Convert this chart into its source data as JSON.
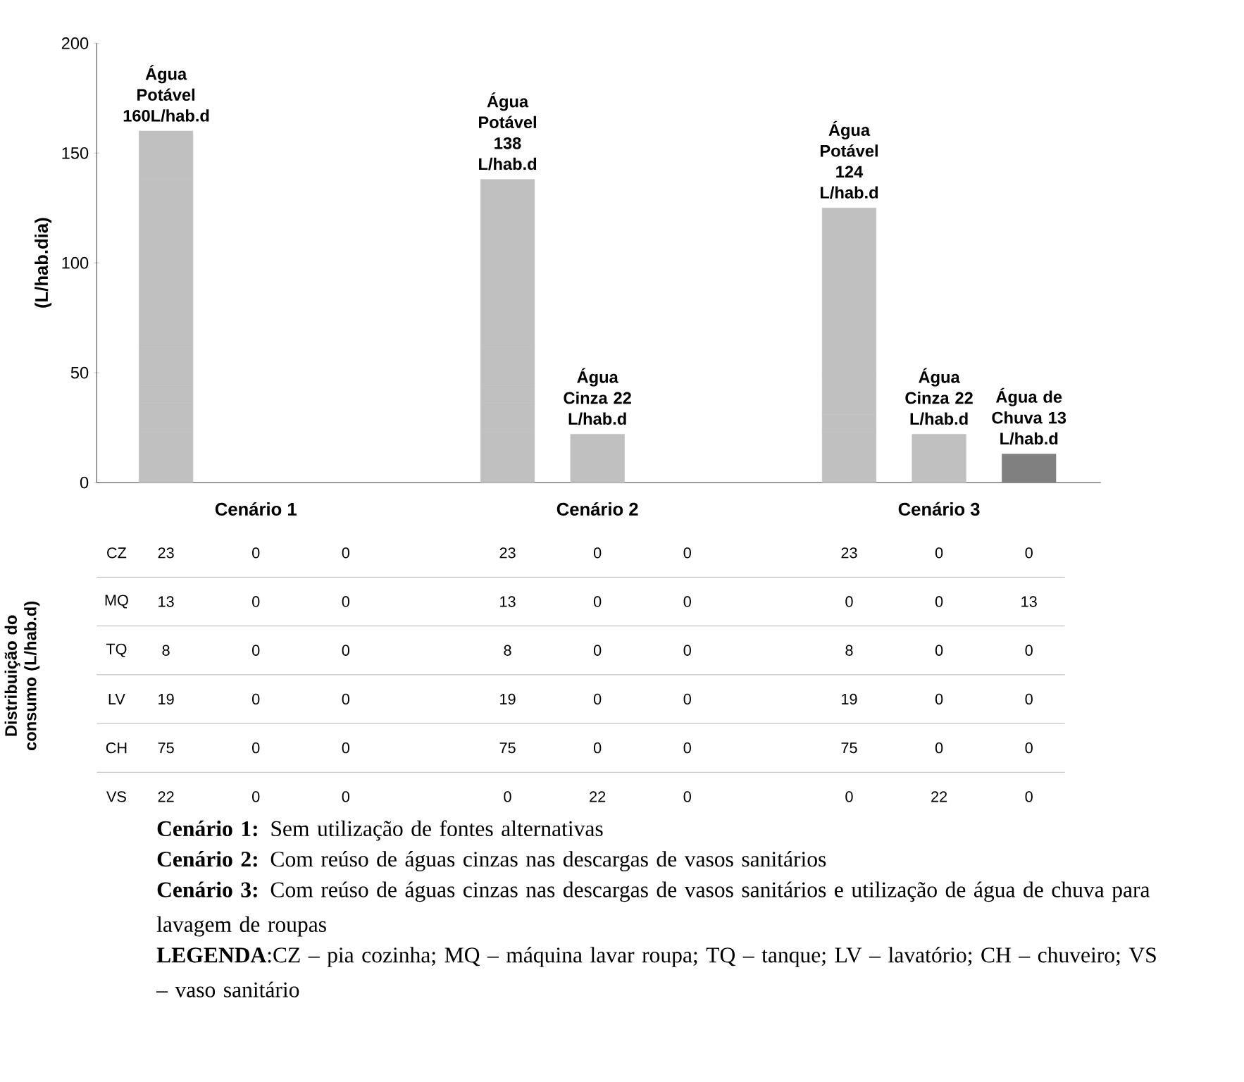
{
  "chart_data": {
    "type": "bar",
    "stacked": true,
    "ylabel": "(L/hab.dia)",
    "categories": [
      null,
      null,
      null,
      null,
      null,
      null,
      null,
      null,
      null
    ],
    "series": [
      {
        "values": [
          23,
          0,
          0,
          23,
          0,
          0,
          23,
          0,
          0
        ],
        "colors": [
          "#c0c0c0",
          "#c0c0c0",
          "#808080",
          "#c0c0c0",
          "#c0c0c0",
          "#808080",
          "#c0c0c0",
          "#c0c0c0",
          "#808080"
        ]
      },
      {
        "values": [
          13,
          0,
          0,
          13,
          0,
          0,
          0,
          0,
          13
        ],
        "colors": [
          "#c0c0c0",
          "#c0c0c0",
          "#808080",
          "#c0c0c0",
          "#c0c0c0",
          "#808080",
          "#c0c0c0",
          "#c0c0c0",
          "#808080"
        ]
      },
      {
        "values": [
          8,
          0,
          0,
          8,
          0,
          0,
          8,
          0,
          0
        ],
        "colors": [
          "#c0c0c0",
          "#c0c0c0",
          "#808080",
          "#c0c0c0",
          "#c0c0c0",
          "#808080",
          "#c0c0c0",
          "#c0c0c0",
          "#808080"
        ]
      },
      {
        "values": [
          19,
          0,
          0,
          19,
          0,
          0,
          19,
          0,
          0
        ],
        "colors": [
          "#c0c0c0",
          "#c0c0c0",
          "#808080",
          "#c0c0c0",
          "#c0c0c0",
          "#808080",
          "#c0c0c0",
          "#c0c0c0",
          "#808080"
        ]
      },
      {
        "values": [
          75,
          0,
          0,
          75,
          0,
          0,
          75,
          0,
          0
        ],
        "colors": [
          "#c0c0c0",
          "#c0c0c0",
          "#808080",
          "#c0c0c0",
          "#c0c0c0",
          "#808080",
          "#c0c0c0",
          "#c0c0c0",
          "#808080"
        ]
      },
      {
        "values": [
          22,
          0,
          0,
          0,
          22,
          0,
          0,
          22,
          0
        ],
        "colors": [
          "#c0c0c0",
          "#c0c0c0",
          "#808080",
          "#c0c0c0",
          "#c0c0c0",
          "#808080",
          "#c0c0c0",
          "#c0c0c0",
          "#808080"
        ]
      }
    ],
    "data_labels": true,
    "totals": [
      "Água Potável 160L/hab.d",
      null,
      null,
      "Água Potável 138 L/hab.d",
      "Água Cinza 22 L/hab.d",
      null,
      "Água Potável 124 L/hab.d",
      "Água Cinza 22 L/hab.d",
      "Água de Chuva 13 L/hab.d"
    ],
    "ylim": [
      0,
      200
    ],
    "yticks": [
      0,
      50,
      100,
      150,
      200
    ],
    "annotations": [
      "Cenário 1",
      "Cenário 2",
      "Cenário 3",
      "Distribuição do consumo (L/hab.d)",
      "CZ",
      "MQ",
      "TQ",
      "LV",
      "CH",
      "VS",
      "**Cenário 1:** Sem utilização de fontes alternativas",
      "**Cenário 2:** Com reúso de águas cinzas nas descargas de vasos sanitários",
      "**Cenário 3:** Com reúso de águas cinzas nas descargas de vasos sanitários e utilização de água de chuva para lavagem de roupas",
      "**LEGENDA**:CZ – pia cozinha; MQ – máquina lavar roupa; TQ – tanque; LV – lavatório; CH – chuveiro; VS – vaso sanitário"
    ]
  }
}
